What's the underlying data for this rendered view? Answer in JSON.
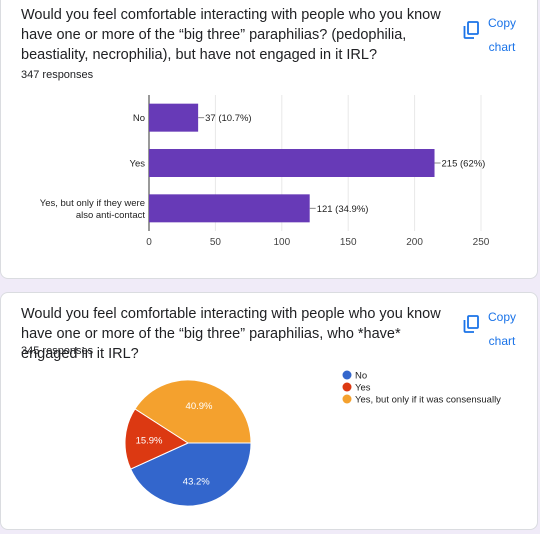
{
  "charts": [
    {
      "question": "Would you feel comfortable interacting with people who you know have one or more of the “big three” paraphilias? (pedophilia, beastiality, necrophilia), but have not engaged in it IRL?",
      "responses": "347 responses",
      "copy_label": "Copy chart"
    },
    {
      "question": "Would you feel comfortable interacting with people who you know have one or more of the “big three” paraphilias, who *have* engaged in it IRL?",
      "responses": "345 responses",
      "copy_label": "Copy chart"
    }
  ],
  "chart_data": [
    {
      "type": "bar",
      "orientation": "horizontal",
      "categories": [
        "No",
        "Yes",
        "Yes, but only if they were also anti-contact"
      ],
      "values": [
        37,
        215,
        121
      ],
      "data_labels": [
        "37 (10.7%)",
        "215 (62%)",
        "121 (34.9%)"
      ],
      "xlim": [
        0,
        250
      ],
      "xticks": [
        0,
        50,
        100,
        150,
        200,
        250
      ],
      "grid": true,
      "colors": [
        "#673ab7"
      ]
    },
    {
      "type": "pie",
      "categories": [
        "No",
        "Yes",
        "Yes, but only if it was consensually"
      ],
      "values": [
        43.2,
        15.9,
        40.9
      ],
      "data_labels": [
        "43.2%",
        "15.9%",
        "40.9%"
      ],
      "colors": [
        "#3366cc",
        "#dc3912",
        "#f4a12e"
      ],
      "legend": "right"
    }
  ]
}
